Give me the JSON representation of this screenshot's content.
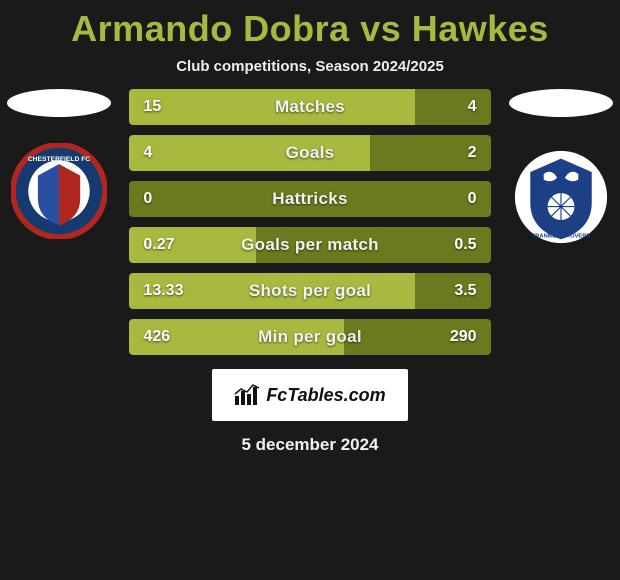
{
  "title": "Armando Dobra vs Hawkes",
  "title_color": "#a9b83e",
  "subtitle": "Club competitions, Season 2024/2025",
  "background_color": "#1a1a1a",
  "stats": {
    "bar_colors": {
      "left_fill": "#a9b83e",
      "right_fill": "#6b7a1e"
    },
    "font_size": 17,
    "rows": [
      {
        "label": "Matches",
        "left": "15",
        "right": "4",
        "left_ratio": 0.79
      },
      {
        "label": "Goals",
        "left": "4",
        "right": "2",
        "left_ratio": 0.667
      },
      {
        "label": "Hattricks",
        "left": "0",
        "right": "0",
        "left_ratio": 0.0
      },
      {
        "label": "Goals per match",
        "left": "0.27",
        "right": "0.5",
        "left_ratio": 0.35
      },
      {
        "label": "Shots per goal",
        "left": "13.33",
        "right": "3.5",
        "left_ratio": 0.79
      },
      {
        "label": "Min per goal",
        "left": "426",
        "right": "290",
        "left_ratio": 0.595
      }
    ]
  },
  "brand": {
    "text": "FcTables.com",
    "bg": "#ffffff",
    "text_color": "#111111"
  },
  "footer_date": "5 december 2024",
  "left_club": {
    "name": "chesterfield-badge",
    "colors": {
      "outer": "#16396f",
      "ring": "#b0271f",
      "inner": "#ffffff",
      "accent": "#2a4fa0"
    }
  },
  "right_club": {
    "name": "tranmere-badge",
    "colors": {
      "outer": "#ffffff",
      "inner": "#1d3f86",
      "accent": "#1d3f86"
    }
  }
}
